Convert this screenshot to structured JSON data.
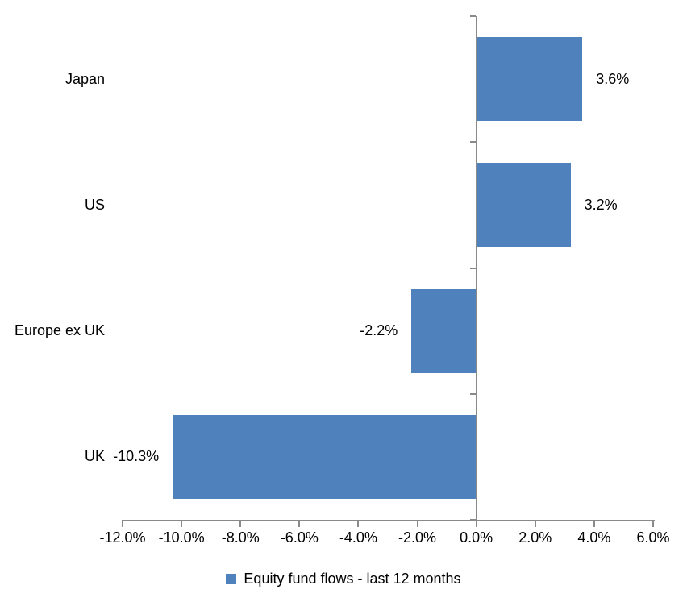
{
  "chart_data": {
    "type": "bar",
    "orientation": "horizontal",
    "title": "",
    "categories": [
      "Japan",
      "US",
      "Europe ex UK",
      "UK"
    ],
    "series": [
      {
        "name": "Equity fund flows - last 12 months",
        "values": [
          3.6,
          3.2,
          -2.2,
          -10.3
        ],
        "data_labels": [
          "3.6%",
          "3.2%",
          "-2.2%",
          "-10.3%"
        ],
        "color": "#4F81BD"
      }
    ],
    "xlim": [
      -12,
      6
    ],
    "x_tick_values": [
      -12,
      -10,
      -8,
      -6,
      -4,
      -2,
      0,
      2,
      4,
      6
    ],
    "x_tick_labels": [
      "-12.0%",
      "-10.0%",
      "-8.0%",
      "-6.0%",
      "-4.0%",
      "-2.0%",
      "0.0%",
      "2.0%",
      "4.0%",
      "6.0%"
    ],
    "grid": false,
    "legend_position": "bottom",
    "axis_color": "#8a8a8a",
    "text_color": "#000000"
  }
}
